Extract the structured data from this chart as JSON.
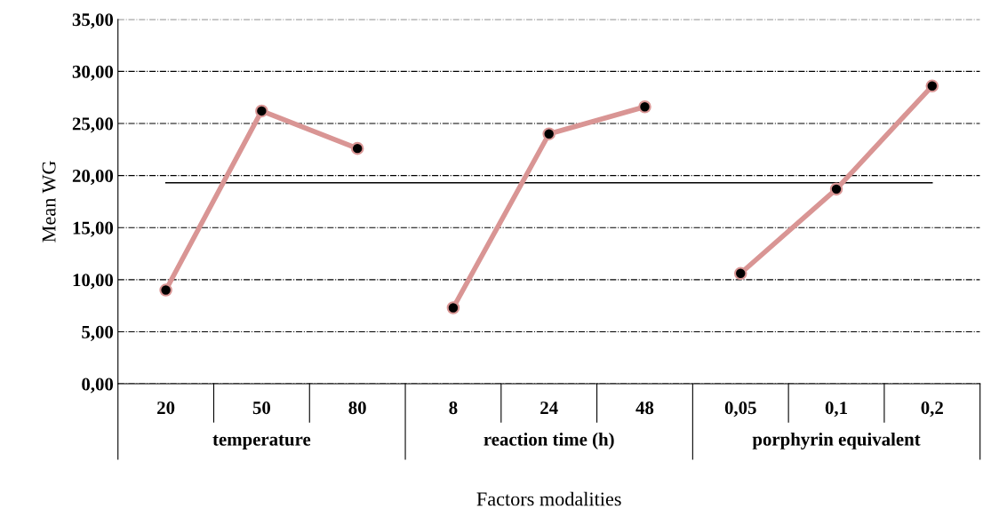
{
  "chart_data": {
    "type": "line",
    "xlabel": "Factors modalities",
    "ylabel": "Mean WG",
    "categories": [
      "20",
      "50",
      "80",
      "8",
      "24",
      "48",
      "0,05",
      "0,1",
      "0,2"
    ],
    "series": [
      {
        "color": "#d99594",
        "values": [
          9.0,
          26.2,
          22.6,
          null,
          null,
          null,
          null,
          null,
          null
        ]
      },
      {
        "color": "#d99594",
        "values": [
          null,
          null,
          null,
          7.3,
          24.0,
          26.6,
          null,
          null,
          null
        ]
      },
      {
        "color": "#d99594",
        "values": [
          null,
          null,
          null,
          null,
          null,
          null,
          10.6,
          18.7,
          28.6
        ]
      }
    ],
    "ylim": [
      0,
      35
    ],
    "yticks": [
      {
        "value": 0,
        "label": "0,00"
      },
      {
        "value": 5,
        "label": "5,00"
      },
      {
        "value": 10,
        "label": "10,00"
      },
      {
        "value": 15,
        "label": "15,00"
      },
      {
        "value": 20,
        "label": "20,00"
      },
      {
        "value": 25,
        "label": "25,00"
      },
      {
        "value": 30,
        "label": "30,00"
      },
      {
        "value": 35,
        "label": "35,00"
      }
    ],
    "ref_lines": [
      {
        "axis": "y",
        "value": 19.3,
        "color": "#000000",
        "line_style": "solid"
      }
    ],
    "annotations": [
      "temperature",
      "reaction time (h)",
      "porphyrin equivalent"
    ],
    "grid": "y",
    "marker": "circle",
    "line_style": "solid",
    "legend": false
  }
}
